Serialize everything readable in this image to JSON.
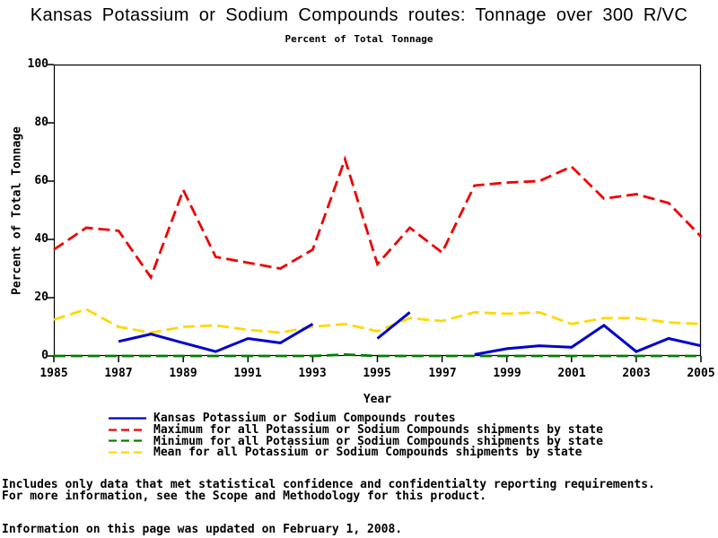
{
  "chart_data": {
    "type": "line",
    "title": "Kansas Potassium or Sodium Compounds routes: Tonnage over 300 R/VC",
    "subtitle": "Percent of Total Tonnage",
    "xlabel": "Year",
    "ylabel": "Percent of Total Tonnage",
    "xlim": [
      1985,
      2005
    ],
    "ylim": [
      0,
      100
    ],
    "xticks": [
      1985,
      1987,
      1989,
      1991,
      1993,
      1995,
      1997,
      1999,
      2001,
      2003,
      2005
    ],
    "yticks": [
      100,
      80,
      60,
      40,
      20,
      0
    ],
    "grid": false,
    "legend_position": "bottom",
    "x": [
      1985,
      1986,
      1987,
      1988,
      1989,
      1990,
      1991,
      1992,
      1993,
      1994,
      1995,
      1996,
      1997,
      1998,
      1999,
      2000,
      2001,
      2002,
      2003,
      2004,
      2005
    ],
    "series": [
      {
        "name": "Kansas Potassium or Sodium Compounds routes",
        "color": "#0000CC",
        "style": "solid",
        "width": 3,
        "dash": null,
        "values": [
          null,
          null,
          5,
          7.5,
          4.5,
          1.5,
          6,
          4.5,
          11,
          null,
          6,
          15,
          null,
          0.5,
          2.5,
          3.5,
          3,
          10.5,
          1.5,
          6,
          3.5
        ]
      },
      {
        "name": "Maximum for all Potassium or Sodium Compounds shipments by state",
        "color": "#EE0000",
        "style": "dashed",
        "width": 2.8,
        "dash": "13 6",
        "values": [
          36.5,
          44,
          43,
          27,
          57,
          34,
          32,
          30,
          36.5,
          67.5,
          31.5,
          44,
          35.5,
          58.5,
          59.5,
          60,
          65,
          54,
          55.5,
          52.5,
          41
        ]
      },
      {
        "name": "Minimum for all Potassium or Sodium Compounds shipments by state",
        "color": "#008000",
        "style": "dashed",
        "width": 2.8,
        "dash": "13 6",
        "values": [
          0,
          0,
          0,
          0,
          0,
          0,
          0,
          0,
          0,
          0.5,
          0,
          0,
          0,
          0,
          0,
          0,
          0,
          0,
          0,
          0,
          0
        ]
      },
      {
        "name": "Mean for all Potassium or Sodium Compounds shipments by state",
        "color": "#FFD800",
        "style": "dashed",
        "width": 2.8,
        "dash": "13 6",
        "values": [
          12.5,
          16,
          10,
          8,
          10,
          10.5,
          9,
          8,
          10,
          11,
          8.5,
          13,
          12,
          15,
          14.5,
          15,
          11,
          13,
          13,
          11.5,
          11
        ]
      }
    ]
  },
  "page": {
    "footnote_line1": "Includes only data that met statistical confidence and confidentialty reporting requirements.",
    "footnote_line2": "For more information, see the Scope and Methodology for this product.",
    "update_note": "Information on this page was updated on February 1, 2008."
  }
}
